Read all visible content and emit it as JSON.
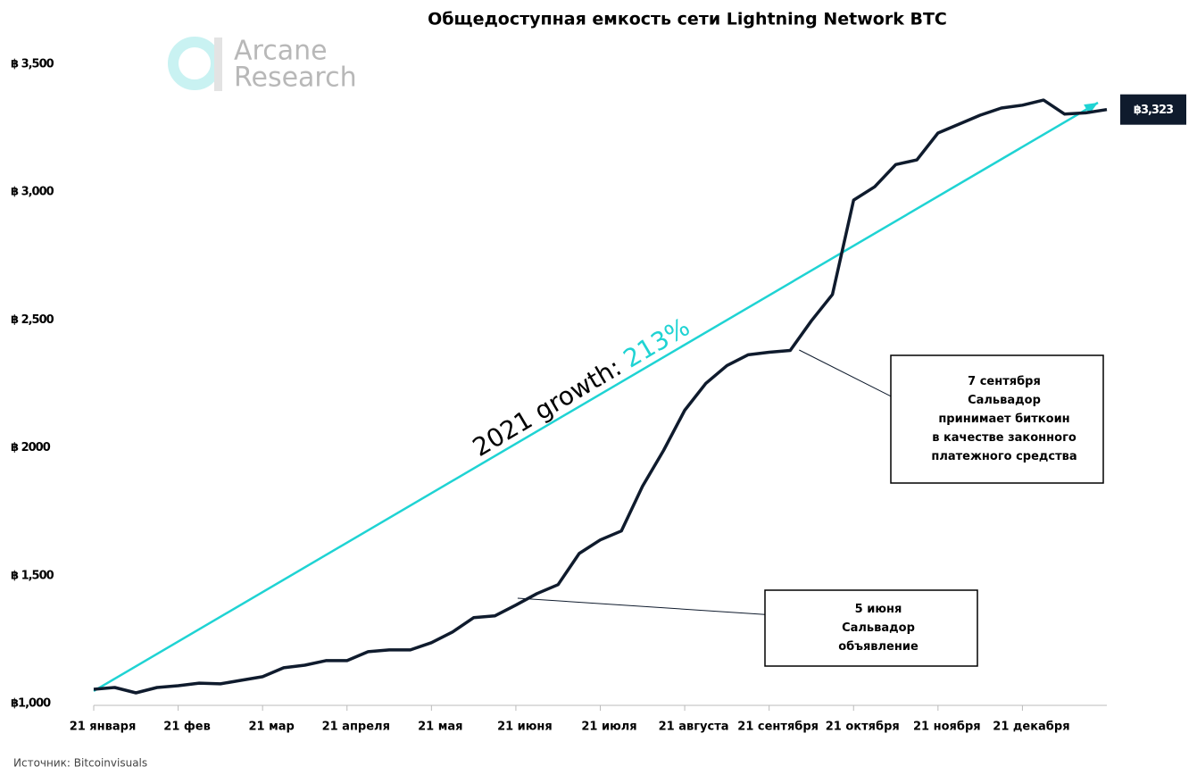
{
  "chart_data": {
    "type": "line",
    "title": "Общедоступная емкость сети Lightning Network BTC",
    "logo": [
      "Arcane",
      "Research"
    ],
    "source": "Источник: Bitcoinvisuals",
    "growth_label": "2021 growth: ",
    "growth_value": "213%",
    "last_value_label": "฿3,323",
    "annotations": [
      {
        "lines": [
          "7 сентября",
          "Сальвадор",
          "принимает биткоин",
          "в качестве законного",
          "платежного средства"
        ]
      },
      {
        "lines": [
          "5 июня",
          "Сальвадор",
          "объявление"
        ]
      }
    ],
    "categories": [
      "21 января",
      null,
      null,
      null,
      "21 фев",
      null,
      null,
      null,
      "21 мар",
      null,
      null,
      null,
      "21 апреля",
      null,
      null,
      null,
      "21 мая",
      null,
      null,
      null,
      "21 июня",
      null,
      null,
      null,
      "21 июля",
      null,
      null,
      null,
      "21 августа",
      null,
      null,
      null,
      "21 сентября",
      null,
      null,
      null,
      "21 октября",
      null,
      null,
      null,
      "21 ноября",
      null,
      null,
      null,
      "21 декабря",
      null,
      null,
      null,
      null
    ],
    "values": [
      1056,
      1063,
      1042,
      1063,
      1070,
      1080,
      1077,
      1091,
      1105,
      1140,
      1150,
      1168,
      1168,
      1203,
      1210,
      1210,
      1238,
      1280,
      1336,
      1343,
      1385,
      1430,
      1465,
      1587,
      1640,
      1675,
      1850,
      1990,
      2147,
      2252,
      2322,
      2364,
      2374,
      2381,
      2497,
      2600,
      2969,
      3021,
      3108,
      3126,
      3231,
      3266,
      3301,
      3329,
      3340,
      3360,
      3305,
      3310,
      3323
    ],
    "color": "#0f1b2d",
    "trend_color": "#1fd3d3",
    "ylim": [
      1000,
      3500
    ],
    "yticks": [
      {
        "value": 1000,
        "label": "฿1,000"
      },
      {
        "value": 1500,
        "label": "฿ 1,500"
      },
      {
        "value": 2000,
        "label": "฿ 2000"
      },
      {
        "value": 2500,
        "label": "฿ 2,500"
      },
      {
        "value": 3000,
        "label": "฿ 3,000"
      },
      {
        "value": 3500,
        "label": "฿ 3,500"
      }
    ],
    "grid": false
  }
}
